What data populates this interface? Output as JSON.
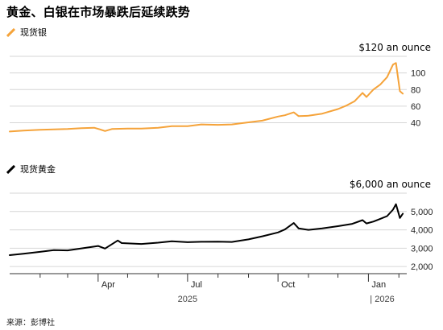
{
  "title": "黄金、白银在市场暴跌后延续跌势",
  "source": "来源：彭博社",
  "colors": {
    "silver": "#f5a33a",
    "gold": "#000000",
    "grid": "#d6d6d6",
    "axis": "#333333"
  },
  "chart_data": [
    {
      "type": "line",
      "name": "silver",
      "legend": "现货银",
      "unit_label": "$120 an ounce",
      "yticks": [
        40,
        60,
        80,
        100
      ],
      "ylim": [
        25,
        120
      ],
      "grid": true,
      "x": [
        "2025-01-01",
        "2025-01-15",
        "2025-02-01",
        "2025-02-15",
        "2025-03-01",
        "2025-03-15",
        "2025-03-28",
        "2025-04-03",
        "2025-04-08",
        "2025-04-15",
        "2025-05-01",
        "2025-05-15",
        "2025-06-01",
        "2025-06-15",
        "2025-07-01",
        "2025-07-15",
        "2025-08-01",
        "2025-08-15",
        "2025-09-01",
        "2025-09-15",
        "2025-10-01",
        "2025-10-08",
        "2025-10-17",
        "2025-10-22",
        "2025-11-01",
        "2025-11-15",
        "2025-12-01",
        "2025-12-10",
        "2025-12-18",
        "2025-12-26",
        "2025-12-30",
        "2026-01-06",
        "2026-01-13",
        "2026-01-20",
        "2026-01-26",
        "2026-01-29",
        "2026-02-02",
        "2026-02-05"
      ],
      "series": [
        {
          "name": "现货银",
          "values": [
            29.5,
            30.5,
            31.5,
            32.0,
            32.5,
            33.5,
            34.0,
            32.0,
            30.0,
            32.5,
            33.0,
            33.0,
            34.0,
            36.0,
            36.0,
            38.0,
            37.5,
            38.0,
            40.5,
            42.5,
            47.5,
            49.0,
            52.5,
            48.0,
            48.5,
            51.0,
            56.5,
            61.0,
            66.0,
            76.0,
            71.0,
            80.0,
            86.0,
            95.0,
            110.0,
            112.0,
            78.0,
            75.0
          ]
        }
      ]
    },
    {
      "type": "line",
      "name": "gold",
      "legend": "现货黄金",
      "unit_label": "$6,000 an ounce",
      "yticks": [
        2000,
        3000,
        4000,
        5000
      ],
      "ylim": [
        1700,
        6000
      ],
      "grid": true,
      "x": [
        "2025-01-01",
        "2025-01-15",
        "2025-02-01",
        "2025-02-15",
        "2025-03-01",
        "2025-03-15",
        "2025-04-01",
        "2025-04-08",
        "2025-04-21",
        "2025-04-25",
        "2025-05-15",
        "2025-06-01",
        "2025-06-15",
        "2025-07-01",
        "2025-07-15",
        "2025-08-01",
        "2025-08-15",
        "2025-09-01",
        "2025-09-15",
        "2025-10-01",
        "2025-10-08",
        "2025-10-17",
        "2025-10-22",
        "2025-11-01",
        "2025-11-15",
        "2025-12-01",
        "2025-12-15",
        "2025-12-26",
        "2025-12-30",
        "2026-01-06",
        "2026-01-13",
        "2026-01-20",
        "2026-01-26",
        "2026-01-29",
        "2026-02-02",
        "2026-02-05"
      ],
      "series": [
        {
          "name": "现货黄金",
          "values": [
            2620,
            2700,
            2800,
            2900,
            2880,
            2990,
            3120,
            2980,
            3420,
            3280,
            3230,
            3300,
            3380,
            3330,
            3350,
            3360,
            3340,
            3480,
            3650,
            3860,
            4020,
            4370,
            4080,
            4000,
            4080,
            4200,
            4320,
            4530,
            4350,
            4450,
            4600,
            4750,
            5100,
            5400,
            4650,
            4880
          ]
        }
      ]
    }
  ],
  "xaxis": {
    "ticks": [
      {
        "label": "Apr",
        "date": "2025-04-01"
      },
      {
        "label": "Jul",
        "date": "2025-07-01"
      },
      {
        "label": "Oct",
        "date": "2025-10-01"
      },
      {
        "label": "Jan",
        "date": "2026-01-01"
      }
    ],
    "minor_ticks": [
      "2025-02-01",
      "2025-03-01",
      "2025-05-01",
      "2025-06-01",
      "2025-08-01",
      "2025-09-01",
      "2025-11-01",
      "2025-12-01",
      "2026-02-01"
    ],
    "years": [
      {
        "label": "2025",
        "date": "2025-07-01"
      },
      {
        "label": "| 2026",
        "date": "2026-01-15"
      }
    ],
    "range": [
      "2025-01-01",
      "2026-02-09"
    ]
  }
}
